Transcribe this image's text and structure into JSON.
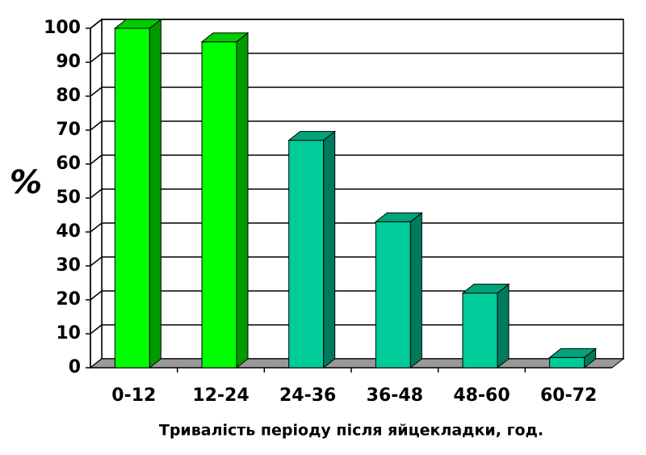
{
  "chart_data": {
    "type": "bar3d",
    "y_label": "%",
    "x_label": "Тривалість періоду після яйцекладки, год.",
    "categories": [
      "0-12",
      "12-24",
      "24-36",
      "36-48",
      "48-60",
      "60-72"
    ],
    "values": [
      100,
      96,
      67,
      43,
      22,
      3
    ],
    "colors": [
      "#00ff00",
      "#00ff00",
      "#00cc99",
      "#00cc99",
      "#00cc99",
      "#00cc99"
    ],
    "ylim": [
      0,
      100
    ],
    "yticks": [
      0,
      10,
      20,
      30,
      40,
      50,
      60,
      70,
      80,
      90,
      100
    ],
    "grid": true
  }
}
